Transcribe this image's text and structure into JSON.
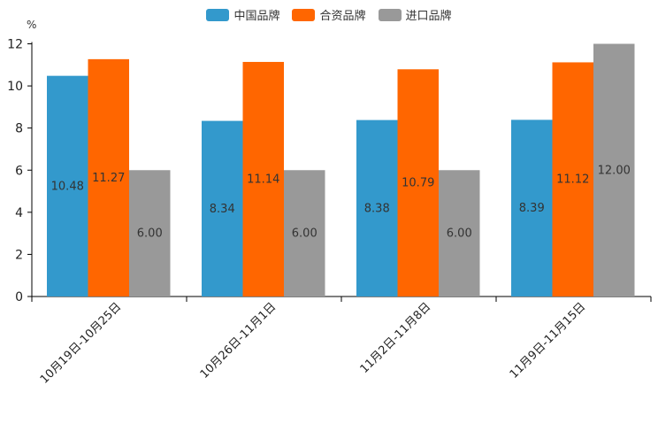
{
  "chart_data": {
    "type": "bar",
    "unit": "%",
    "categories": [
      "10月19日-10月25日",
      "10月26日-11月1日",
      "11月2日-11月8日",
      "11月9日-11月15日"
    ],
    "series": [
      {
        "name": "中国品牌",
        "color": "#3399cc",
        "values": [
          10.48,
          8.34,
          8.38,
          8.39
        ],
        "labels": [
          "10.48",
          "8.34",
          "8.38",
          "8.39"
        ]
      },
      {
        "name": "合资品牌",
        "color": "#ff6600",
        "values": [
          11.27,
          11.14,
          10.79,
          11.12
        ],
        "labels": [
          "11.27",
          "11.14",
          "10.79",
          "11.12"
        ]
      },
      {
        "name": "进口品牌",
        "color": "#999999",
        "values": [
          6.0,
          6.0,
          6.0,
          12.0
        ],
        "labels": [
          "6.00",
          "6.00",
          "6.00",
          "12.00"
        ]
      }
    ],
    "ylim": [
      0,
      12
    ],
    "yticks": [
      "0",
      "2",
      "4",
      "6",
      "8",
      "10",
      "12"
    ],
    "legend_position": "top-center"
  }
}
